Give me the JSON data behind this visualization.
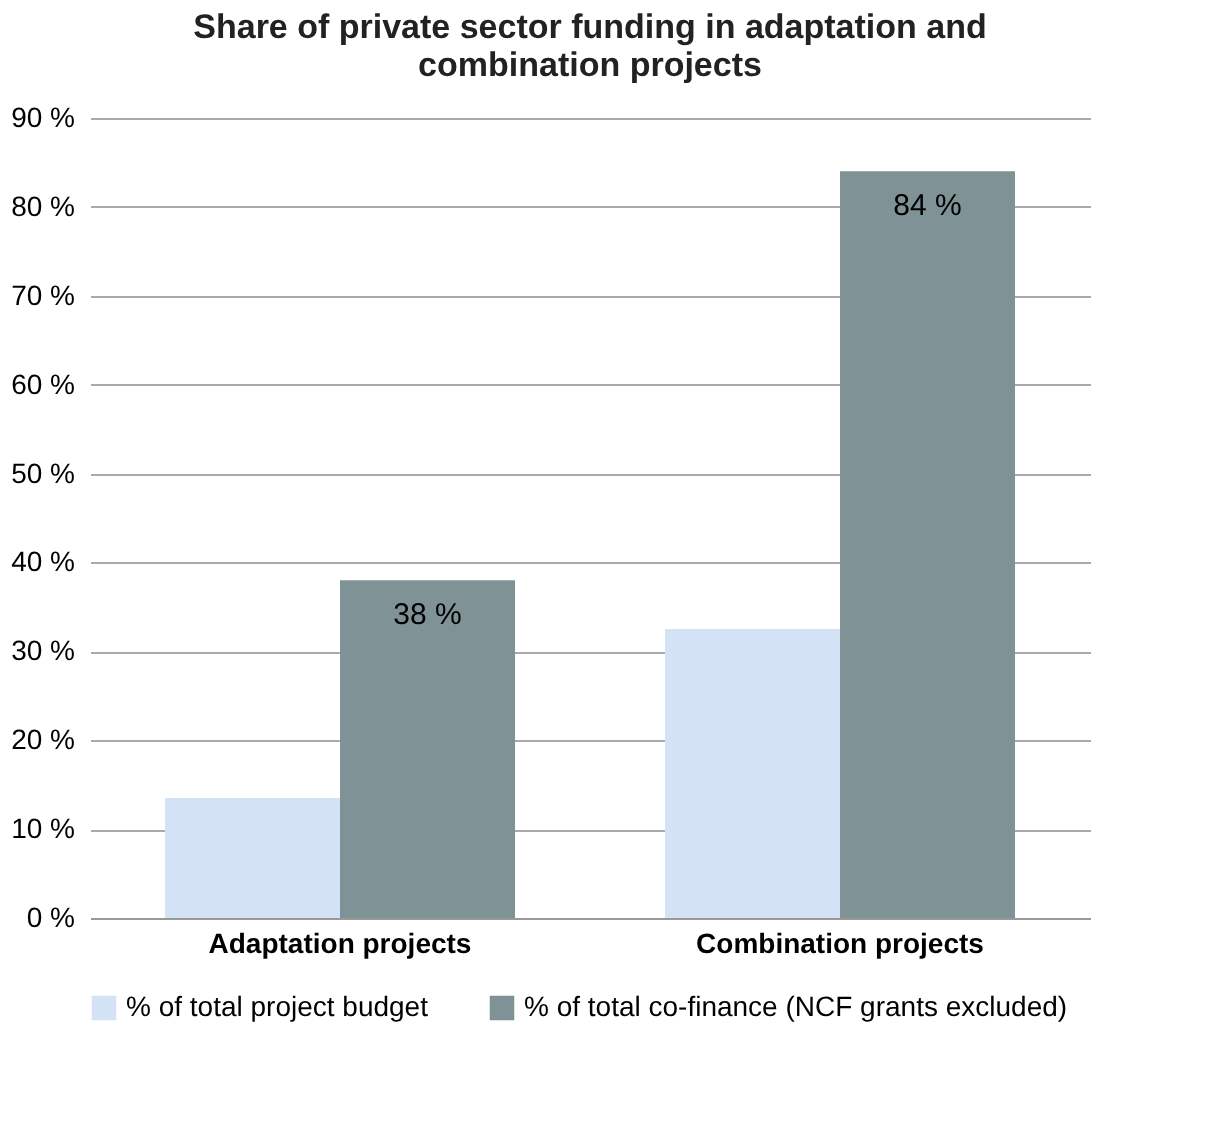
{
  "chart_data": {
    "type": "bar",
    "title": "Share of private sector funding in adaptation and combination projects",
    "categories": [
      "Adaptation projects",
      "Combination projects"
    ],
    "series": [
      {
        "name": "% of total project budget",
        "color": "#d3e2f4",
        "values": [
          13.5,
          32.5
        ]
      },
      {
        "name": "% of total co-finance (NCF grants excluded)",
        "color": "#7f9295",
        "values": [
          38,
          84
        ],
        "value_labels": [
          "38 %",
          "84 %"
        ]
      }
    ],
    "ylim": [
      0,
      90
    ],
    "yticks": [
      {
        "value": 0,
        "label": "0 %"
      },
      {
        "value": 10,
        "label": "10 %"
      },
      {
        "value": 20,
        "label": "20 %"
      },
      {
        "value": 30,
        "label": "30 %"
      },
      {
        "value": 40,
        "label": "40 %"
      },
      {
        "value": 50,
        "label": "50 %"
      },
      {
        "value": 60,
        "label": "60 %"
      },
      {
        "value": 70,
        "label": "70 %"
      },
      {
        "value": 80,
        "label": "80 %"
      },
      {
        "value": 90,
        "label": "90 %"
      }
    ],
    "grid": "y",
    "legend": "bottom"
  }
}
